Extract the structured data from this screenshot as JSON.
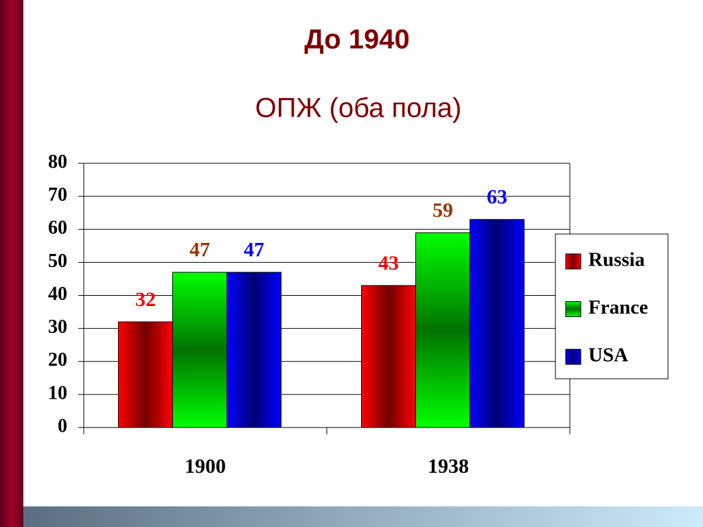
{
  "chart_data": {
    "type": "bar",
    "title": "До 1940",
    "subtitle": "ОПЖ (оба пола)",
    "categories": [
      "1900",
      "1938"
    ],
    "series": [
      {
        "name": "Russia",
        "color": "#ff0000",
        "label_color": "#ff0000",
        "values": [
          32,
          43
        ]
      },
      {
        "name": "France",
        "color": "#00ff00",
        "label_color": "#993300",
        "values": [
          47,
          59
        ]
      },
      {
        "name": "USA",
        "color": "#0000ff",
        "label_color": "#0000ff",
        "values": [
          47,
          63
        ]
      }
    ],
    "ylim": [
      0,
      80
    ],
    "yticks": [
      0,
      10,
      20,
      30,
      40,
      50,
      60,
      70,
      80
    ],
    "grid": true,
    "legend": "right"
  }
}
